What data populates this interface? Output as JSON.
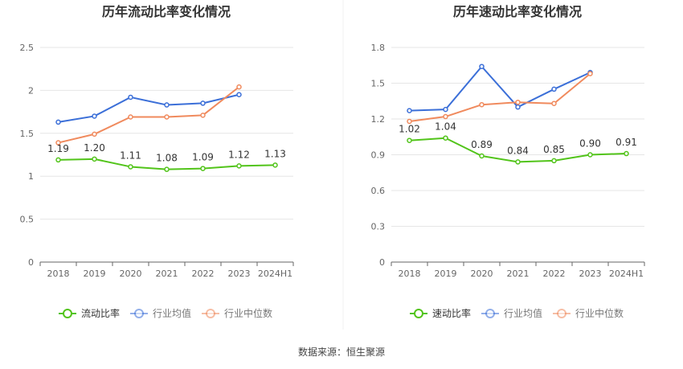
{
  "source": {
    "label": "数据来源：",
    "name": "恒生聚源"
  },
  "colors": {
    "main": "#52c41a",
    "avg": "#3b6fd8",
    "median": "#f08a5d",
    "grid": "#e6e6e6",
    "axis": "#666666",
    "label": "#333333"
  },
  "chart_data": [
    {
      "type": "line",
      "title": "历年流动比率变化情况",
      "categories": [
        "2018",
        "2019",
        "2020",
        "2021",
        "2022",
        "2023",
        "2024H1"
      ],
      "ylim": [
        0,
        2.5
      ],
      "yticks": [
        "0",
        "0.5",
        "1",
        "1.5",
        "2",
        "2.5"
      ],
      "series": [
        {
          "name": "流动比率",
          "key": "main",
          "values": [
            1.19,
            1.2,
            1.11,
            1.08,
            1.09,
            1.12,
            1.13
          ],
          "labels": [
            "1.19",
            "1.20",
            "1.11",
            "1.08",
            "1.09",
            "1.12",
            "1.13"
          ]
        },
        {
          "name": "行业均值",
          "key": "avg",
          "values": [
            1.63,
            1.7,
            1.92,
            1.83,
            1.85,
            1.95,
            null
          ]
        },
        {
          "name": "行业中位数",
          "key": "median",
          "values": [
            1.39,
            1.49,
            1.69,
            1.69,
            1.71,
            2.04,
            null
          ]
        }
      ],
      "legend": "bottom-center"
    },
    {
      "type": "line",
      "title": "历年速动比率变化情况",
      "categories": [
        "2018",
        "2019",
        "2020",
        "2021",
        "2022",
        "2023",
        "2024H1"
      ],
      "ylim": [
        0,
        1.8
      ],
      "yticks": [
        "0",
        "0.3",
        "0.6",
        "0.9",
        "1.2",
        "1.5",
        "1.8"
      ],
      "series": [
        {
          "name": "速动比率",
          "key": "main",
          "values": [
            1.02,
            1.04,
            0.89,
            0.84,
            0.85,
            0.9,
            0.91
          ],
          "labels": [
            "1.02",
            "1.04",
            "0.89",
            "0.84",
            "0.85",
            "0.90",
            "0.91"
          ]
        },
        {
          "name": "行业均值",
          "key": "avg",
          "values": [
            1.27,
            1.28,
            1.64,
            1.3,
            1.45,
            1.59,
            null
          ]
        },
        {
          "name": "行业中位数",
          "key": "median",
          "values": [
            1.18,
            1.22,
            1.32,
            1.34,
            1.33,
            1.58,
            null
          ]
        }
      ],
      "legend": "bottom-center"
    }
  ]
}
